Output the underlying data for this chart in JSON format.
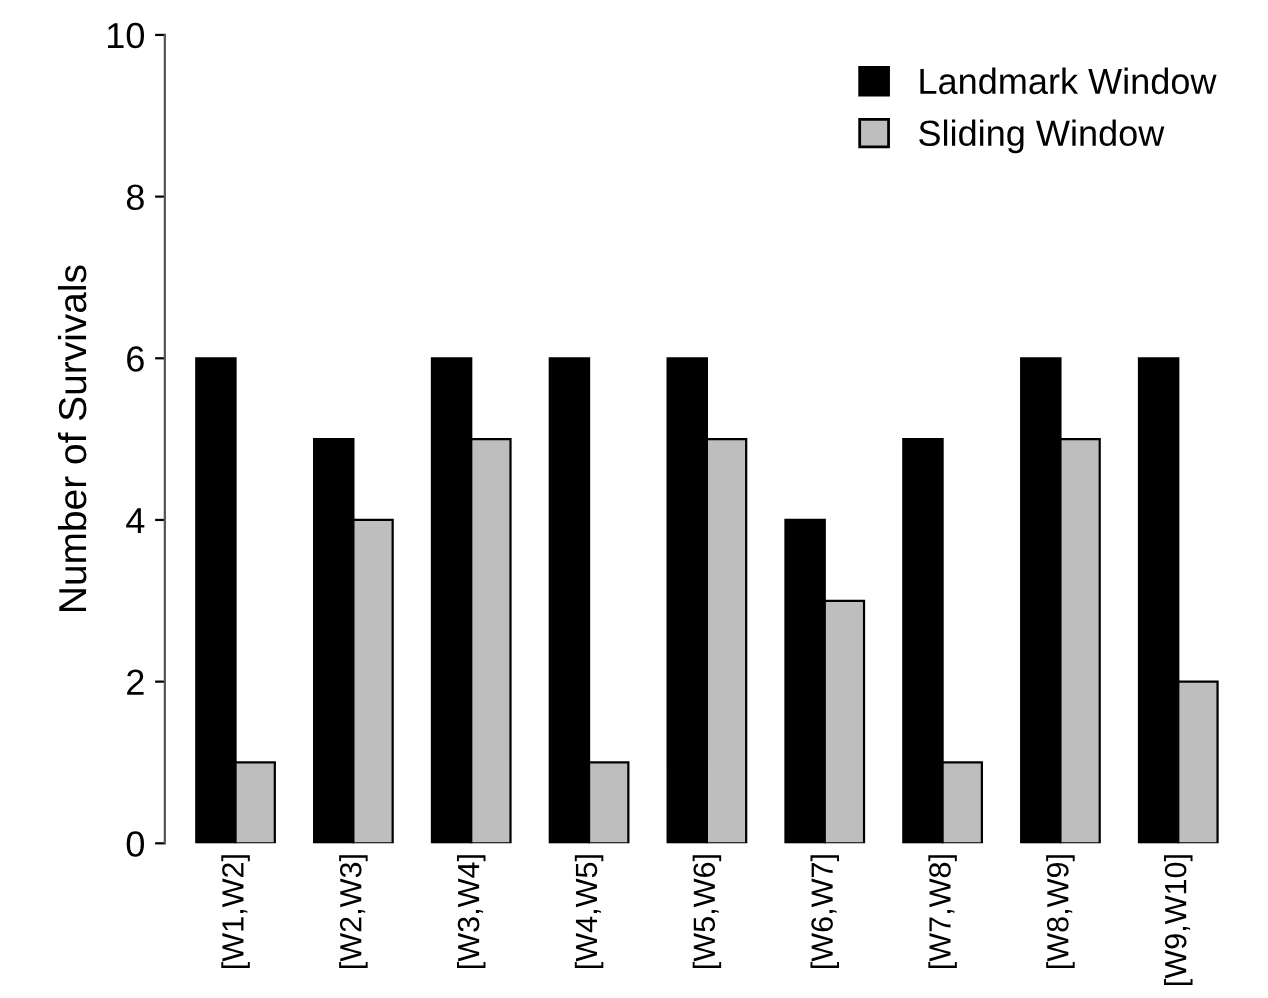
{
  "chart_data": {
    "type": "bar",
    "ylabel": "Number of Survivals",
    "categories": [
      "[W1,W2]",
      "[W2,W3]",
      "[W3,W4]",
      "[W4,W5]",
      "[W5,W6]",
      "[W6,W7]",
      "[W7,W8]",
      "[W8,W9]",
      "[W9,W10]"
    ],
    "series": [
      {
        "name": "Landmark Window",
        "color": "#000000",
        "values": [
          6,
          5,
          6,
          6,
          6,
          4,
          5,
          6,
          6
        ]
      },
      {
        "name": "Sliding Window",
        "color": "#bebebe",
        "values": [
          1,
          4,
          5,
          1,
          5,
          3,
          1,
          5,
          2
        ]
      }
    ],
    "ylim": [
      0,
      10
    ],
    "yticks": [
      0,
      2,
      4,
      6,
      8,
      10
    ],
    "grid": false,
    "legend": "top right"
  }
}
